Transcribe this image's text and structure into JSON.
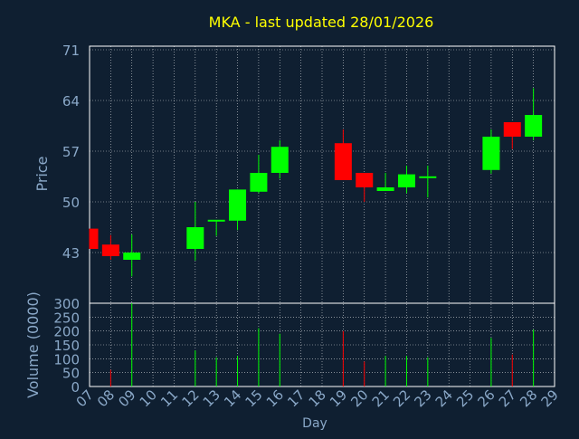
{
  "colors": {
    "background": "#0f1f31",
    "title": "#ffff00",
    "axis_text": "#8aa8c8",
    "frame": "#ffffff",
    "grid": "#ffffff",
    "up": "#00ff00",
    "down": "#ff0000"
  },
  "chart_data": {
    "type": "candlestick",
    "title": "MKA - last updated 28/01/2026",
    "xlabel": "Day",
    "price_panel": {
      "ylabel": "Price",
      "yticks": [
        43,
        50,
        57,
        64,
        71
      ],
      "ylim": [
        36,
        71.5
      ]
    },
    "volume_panel": {
      "ylabel": "Volume (0000)",
      "yticks": [
        0,
        50,
        100,
        150,
        200,
        250,
        300
      ],
      "ylim": [
        0,
        300
      ]
    },
    "days": [
      "07",
      "08",
      "09",
      "10",
      "11",
      "12",
      "13",
      "14",
      "15",
      "16",
      "17",
      "18",
      "19",
      "20",
      "21",
      "22",
      "23",
      "24",
      "25",
      "26",
      "27",
      "28",
      "29"
    ],
    "candles": [
      {
        "day": "07",
        "open": 46.3,
        "close": 43.5,
        "high": 46.3,
        "low": 43.5,
        "volume": 0
      },
      {
        "day": "08",
        "open": 44.1,
        "close": 42.5,
        "high": 45.4,
        "low": 42.0,
        "volume": 60
      },
      {
        "day": "09",
        "open": 42.0,
        "close": 43.0,
        "high": 45.5,
        "low": 39.7,
        "volume": 300
      },
      {
        "day": "12",
        "open": 43.5,
        "close": 46.5,
        "high": 50.0,
        "low": 41.9,
        "volume": 130
      },
      {
        "day": "13",
        "open": 47.2,
        "close": 47.4,
        "high": 47.4,
        "low": 45.3,
        "volume": 105
      },
      {
        "day": "14",
        "open": 47.4,
        "close": 51.7,
        "high": 51.7,
        "low": 46.1,
        "volume": 110
      },
      {
        "day": "15",
        "open": 51.4,
        "close": 54.0,
        "high": 56.5,
        "low": 51.2,
        "volume": 210
      },
      {
        "day": "16",
        "open": 54.0,
        "close": 57.6,
        "high": 58.5,
        "low": 53.2,
        "volume": 190
      },
      {
        "day": "19",
        "open": 58.1,
        "close": 53.0,
        "high": 60.0,
        "low": 53.0,
        "volume": 200
      },
      {
        "day": "20",
        "open": 54.0,
        "close": 52.0,
        "high": 54.0,
        "low": 50.0,
        "volume": 90
      },
      {
        "day": "21",
        "open": 51.5,
        "close": 52.0,
        "high": 54.0,
        "low": 51.5,
        "volume": 110
      },
      {
        "day": "22",
        "open": 52.0,
        "close": 53.8,
        "high": 55.0,
        "low": 51.2,
        "volume": 110
      },
      {
        "day": "23",
        "open": 53.4,
        "close": 53.4,
        "high": 55.0,
        "low": 50.6,
        "volume": 105
      },
      {
        "day": "26",
        "open": 54.4,
        "close": 59.0,
        "high": 60.0,
        "low": 53.9,
        "volume": 175
      },
      {
        "day": "27",
        "open": 61.0,
        "close": 59.0,
        "high": 61.0,
        "low": 57.3,
        "volume": 115
      },
      {
        "day": "28",
        "open": 59.0,
        "close": 62.0,
        "high": 65.7,
        "low": 58.5,
        "volume": 205
      }
    ]
  }
}
